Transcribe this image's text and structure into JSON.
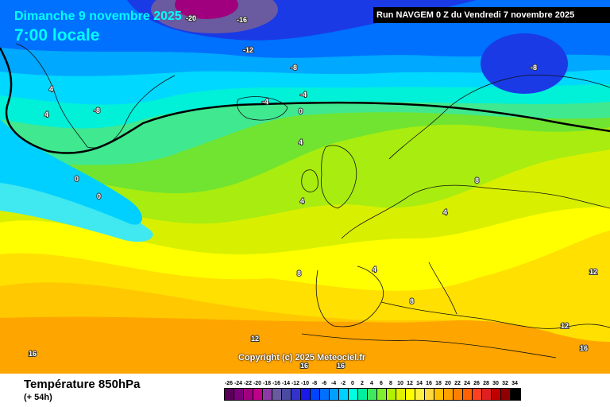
{
  "header": {
    "date": "Dimanche 9 novembre 2025",
    "local_time": "7:00 locale",
    "run": "Run NAVGEM 0 Z du Vendredi 7 novembre 2025"
  },
  "copyright": "Copyright (c) 2025 Meteociel.fr",
  "footer": {
    "parameter": "Température 850hPa",
    "lead_time": "(+ 54h)"
  },
  "scale": {
    "values": [
      "-26",
      "-24",
      "-22",
      "-20",
      "-18",
      "-16",
      "-14",
      "-12",
      "-10",
      "-8",
      "-6",
      "-4",
      "-2",
      "0",
      "2",
      "4",
      "6",
      "8",
      "10",
      "12",
      "14",
      "16",
      "18",
      "20",
      "22",
      "24",
      "26",
      "28",
      "30",
      "32",
      "34"
    ],
    "colors": [
      "#5a005a",
      "#7a007a",
      "#a0007e",
      "#c0008c",
      "#8e3aa6",
      "#6a5aa0",
      "#4a4aa0",
      "#3333cc",
      "#1a1ae6",
      "#0044ff",
      "#0070ff",
      "#00a0ff",
      "#00d0ff",
      "#00ffe0",
      "#00f0a0",
      "#40e860",
      "#80ee30",
      "#b0f000",
      "#e0f000",
      "#ffff00",
      "#fff040",
      "#ffd840",
      "#ffc000",
      "#ffa000",
      "#ff8000",
      "#ff6000",
      "#ff4020",
      "#e02020",
      "#c00000",
      "#900000",
      "#000000"
    ]
  },
  "map_labels": [
    "-20",
    "-16",
    "-12",
    "-8",
    "-8",
    "-8",
    "4",
    "-4",
    "-4",
    "0",
    "0",
    "4",
    "4",
    "0",
    "4",
    "8",
    "4",
    "8",
    "4",
    "8",
    "12",
    "12",
    "16",
    "16",
    "16",
    "12",
    "16"
  ],
  "colors": {
    "title_cyan": "#00ffff",
    "run_bg": "#000000"
  }
}
